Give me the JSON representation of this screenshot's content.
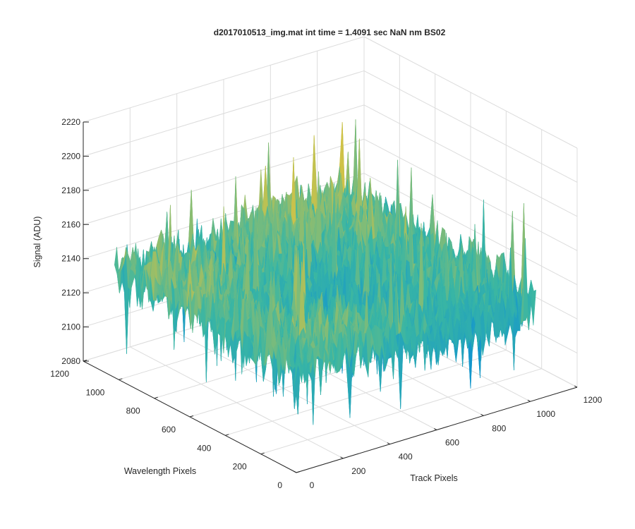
{
  "chart_data": {
    "type": "surface",
    "title": "d2017010513_img.mat int time = 1.4091 sec  NaN nm BS02",
    "xlabel": "Track Pixels",
    "ylabel": "Wavelength Pixels",
    "zlabel": "Signal (ADU)",
    "xlim": [
      0,
      1200
    ],
    "ylim": [
      0,
      1200
    ],
    "zlim": [
      2080,
      2220
    ],
    "x_ticks": [
      0,
      200,
      400,
      600,
      800,
      1000,
      1200
    ],
    "y_ticks": [
      0,
      200,
      400,
      600,
      800,
      1000,
      1200
    ],
    "z_ticks": [
      2080,
      2100,
      2120,
      2140,
      2160,
      2180,
      2200,
      2220
    ],
    "data_extent": {
      "x": [
        0,
        1024
      ],
      "y": [
        0,
        1024
      ]
    },
    "signal_summary": {
      "baseline": 2140,
      "min": 2095,
      "max": 2205
    },
    "colormap": "parula",
    "colors": {
      "low": "#0c8fd6",
      "mid": "#39b6a4",
      "high": "#f2c531"
    },
    "grid": true,
    "view": "3d"
  }
}
